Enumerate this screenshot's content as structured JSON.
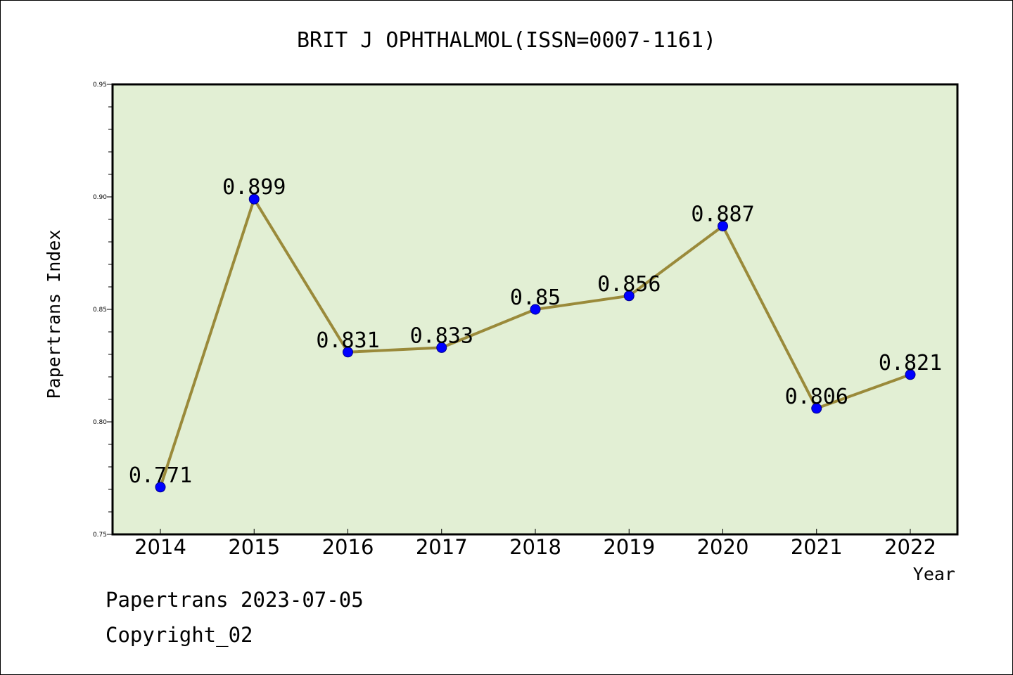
{
  "chart_data": {
    "type": "line",
    "title": "BRIT J OPHTHALMOL(ISSN=0007-1161)",
    "xlabel": "Year",
    "ylabel": "Papertrans Index",
    "categories": [
      "2014",
      "2015",
      "2016",
      "2017",
      "2018",
      "2019",
      "2020",
      "2021",
      "2022"
    ],
    "series": [
      {
        "values": [
          0.771,
          0.899,
          0.831,
          0.833,
          0.85,
          0.856,
          0.887,
          0.806,
          0.821
        ],
        "data_labels": [
          "0.771",
          "0.899",
          "0.831",
          "0.833",
          "0.85",
          "0.856",
          "0.887",
          "0.806",
          "0.821"
        ]
      }
    ],
    "ylim": [
      0.75,
      0.95
    ],
    "ytick_labels": [
      "0.75",
      "0.80",
      "0.85",
      "0.90",
      "0.95"
    ],
    "ytick_values": [
      0.75,
      0.8,
      0.85,
      0.9,
      0.95
    ],
    "grid": false,
    "colors": {
      "plot_background": "#e2efd4",
      "line": "#9a8a3a",
      "marker": "#0000ff",
      "axes": "#000000"
    }
  },
  "footer": {
    "line1": "Papertrans 2023-07-05",
    "line2": "Copyright_02"
  }
}
